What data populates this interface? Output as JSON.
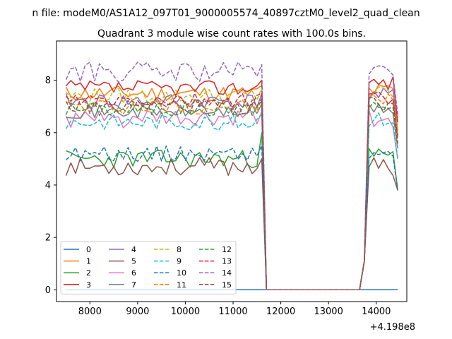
{
  "suptitle": "n file: modeM0/AS1A12_097T01_9000005574_40897cztM0_level2_quad_clean",
  "chart_data": {
    "type": "line",
    "title": "Quadrant 3 module wise count rates with 100.0s bins.",
    "xlabel": "",
    "ylabel": "",
    "x_offset_label": "+4.198e8",
    "xlim": [
      7300,
      14640
    ],
    "ylim": [
      -0.45,
      9.5
    ],
    "xticks": [
      8000,
      9000,
      10000,
      11000,
      12000,
      13000,
      14000
    ],
    "yticks": [
      0,
      2,
      4,
      6,
      8
    ],
    "grid": false,
    "legend": {
      "position": "lower-left",
      "columns": 4
    },
    "segments": {
      "x1": [
        7500,
        7600,
        7700,
        7800,
        7900,
        8000,
        8100,
        8200,
        8300,
        8400,
        8500,
        8600,
        8700,
        8800,
        8900,
        9000,
        9100,
        9200,
        9300,
        9400,
        9500,
        9600,
        9700,
        9800,
        9900,
        10000,
        10100,
        10200,
        10300,
        10400,
        10500,
        10600,
        10700,
        10800,
        10900,
        11000,
        11100,
        11200,
        11300,
        11400,
        11500,
        11600
      ],
      "gap": [
        11700,
        13650
      ],
      "x2": [
        13750,
        13850,
        13950,
        14050,
        14150,
        14250,
        14350,
        14450
      ]
    },
    "series": [
      {
        "name": "0",
        "color": "#1f77b4",
        "dash": "solid",
        "zero": true
      },
      {
        "name": "1",
        "color": "#ff7f0e",
        "dash": "solid",
        "mean": 7.5,
        "amp": 0.3,
        "peak": 7.6,
        "seed": 11
      },
      {
        "name": "2",
        "color": "#2ca02c",
        "dash": "solid",
        "mean": 5.0,
        "amp": 0.35,
        "peak": 5.1,
        "seed": 23,
        "end": 6.0
      },
      {
        "name": "3",
        "color": "#d62728",
        "dash": "solid",
        "mean": 7.7,
        "amp": 0.3,
        "peak": 7.9,
        "seed": 37
      },
      {
        "name": "4",
        "color": "#9467bd",
        "dash": "solid",
        "mean": 7.2,
        "amp": 0.3,
        "peak": 7.4,
        "seed": 41
      },
      {
        "name": "5",
        "color": "#8c564b",
        "dash": "solid",
        "mean": 4.7,
        "amp": 0.35,
        "peak": 4.7,
        "seed": 53
      },
      {
        "name": "6",
        "color": "#e377c2",
        "dash": "solid",
        "mean": 6.5,
        "amp": 0.35,
        "peak": 6.5,
        "seed": 61
      },
      {
        "name": "7",
        "color": "#7f7f7f",
        "dash": "solid",
        "mean": 6.8,
        "amp": 0.25,
        "peak": 6.9,
        "seed": 71
      },
      {
        "name": "8",
        "color": "#bcbd22",
        "dash": "dashed",
        "mean": 7.4,
        "amp": 0.3,
        "peak": 7.5,
        "seed": 79
      },
      {
        "name": "9",
        "color": "#17becf",
        "dash": "dashed",
        "mean": 6.4,
        "amp": 0.3,
        "peak": 6.5,
        "seed": 83
      },
      {
        "name": "10",
        "color": "#1f77b4",
        "dash": "dashed",
        "mean": 5.2,
        "amp": 0.3,
        "peak": 5.2,
        "seed": 89
      },
      {
        "name": "11",
        "color": "#ff7f0e",
        "dash": "dashed",
        "mean": 7.0,
        "amp": 0.3,
        "peak": 7.3,
        "seed": 97
      },
      {
        "name": "12",
        "color": "#2ca02c",
        "dash": "dashed",
        "mean": 6.9,
        "amp": 0.3,
        "peak": 7.0,
        "seed": 101
      },
      {
        "name": "13",
        "color": "#d62728",
        "dash": "dashed",
        "mean": 7.2,
        "amp": 0.3,
        "peak": 7.3,
        "seed": 103
      },
      {
        "name": "14",
        "color": "#9467bd",
        "dash": "dashed",
        "mean": 8.3,
        "amp": 0.4,
        "peak": 8.2,
        "seed": 107
      },
      {
        "name": "15",
        "color": "#8c564b",
        "dash": "dashed",
        "mean": 7.0,
        "amp": 0.3,
        "peak": 7.1,
        "seed": 109
      }
    ]
  }
}
